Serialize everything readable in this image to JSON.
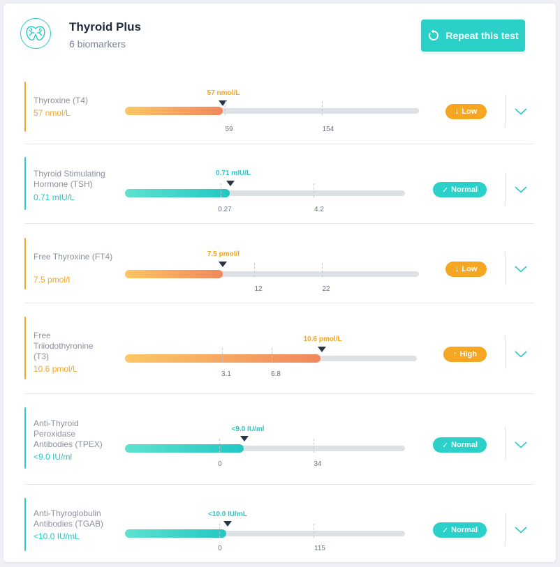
{
  "header": {
    "title": "Thyroid Plus",
    "subtitle": "6 biomarkers",
    "repeat_label": "Repeat this test"
  },
  "colors": {
    "accent": "#2bd1c9",
    "low_high": "#f5a623",
    "marker": "#27344a"
  },
  "biomarkers": [
    {
      "name": "Thyroxine (T4)",
      "value": "57 nmol/L",
      "marker_label": "57 nmol/L",
      "ticks": [
        "59",
        "154"
      ],
      "status": "Low",
      "status_icon": "arrow-down-icon",
      "result_fraction": 0.33
    },
    {
      "name": "Thyroid Stimulating Hormone (TSH)",
      "value": "0.71 mIU/L",
      "marker_label": "0.71 mIU/L",
      "ticks": [
        "0.27",
        "4.2"
      ],
      "status": "Normal",
      "status_icon": "check-icon",
      "result_fraction": 0.37
    },
    {
      "name": "Free Thyroxine (FT4)",
      "value": "7.5 pmol/l",
      "marker_label": "7.5 pmol/l",
      "ticks": [
        "12",
        "22"
      ],
      "status": "Low",
      "status_icon": "arrow-down-icon",
      "result_fraction": 0.33
    },
    {
      "name": "Free Triiodothyronine (T3)",
      "value": "10.6 pmol/L",
      "marker_label": "10.6 pmol/L",
      "ticks": [
        "3.1",
        "6.8"
      ],
      "status": "High",
      "status_icon": "arrow-up-icon",
      "result_fraction": 0.67
    },
    {
      "name": "Anti-Thyroid Peroxidase Antibodies (TPEX)",
      "value": "<9.0 IU/ml",
      "marker_label": "<9.0 IU/ml",
      "ticks": [
        "0",
        "34"
      ],
      "status": "Normal",
      "status_icon": "check-icon",
      "result_fraction": 0.43
    },
    {
      "name": "Anti-Thyroglobulin Antibodies (TGAB)",
      "value": "<10.0 IU/mL",
      "marker_label": "<10.0 IU/mL",
      "ticks": [
        "0",
        "115"
      ],
      "status": "Normal",
      "status_icon": "check-icon",
      "result_fraction": 0.36
    }
  ]
}
